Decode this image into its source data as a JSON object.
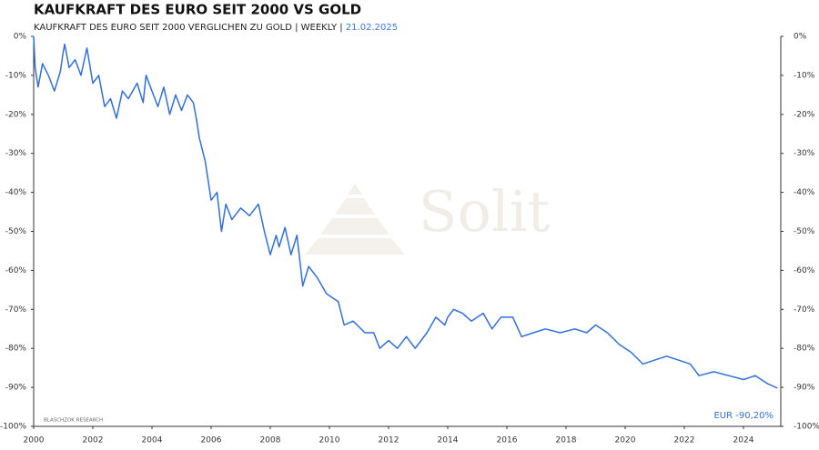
{
  "chart_data": {
    "type": "line",
    "title": "KAUFKRAFT DES EURO SEIT 2000 VS GOLD",
    "subtitle": "KAUFKRAFT DES EURO SEIT 2000 VERGLICHEN ZU GOLD | WEEKLY |",
    "date": "21.02.2025",
    "watermark": "Solit",
    "source": "BLASCHZOK    RESEARCH",
    "annotation": "EUR -90,20%",
    "xlim": [
      2000,
      2025.2
    ],
    "xticks": [
      2000,
      2002,
      2004,
      2006,
      2008,
      2010,
      2012,
      2014,
      2016,
      2018,
      2020,
      2022,
      2024
    ],
    "ylim": [
      -100,
      0
    ],
    "yticks": [
      {
        "value": 0,
        "label": "0%"
      },
      {
        "value": -10,
        "label": "-10%"
      },
      {
        "value": -20,
        "label": "-20%"
      },
      {
        "value": -30,
        "label": "-30%"
      },
      {
        "value": -40,
        "label": "-40%"
      },
      {
        "value": -50,
        "label": "-50%"
      },
      {
        "value": -60,
        "label": "-60%"
      },
      {
        "value": -70,
        "label": "-70%"
      },
      {
        "value": -80,
        "label": "-80%"
      },
      {
        "value": -90,
        "label": "-90%"
      },
      {
        "value": -100,
        "label": "-100%"
      }
    ],
    "x": [
      2000,
      2000.05,
      2000.15,
      2000.3,
      2000.5,
      2000.7,
      2000.9,
      2001.0,
      2001.05,
      2001.2,
      2001.4,
      2001.6,
      2001.8,
      2002.0,
      2002.2,
      2002.4,
      2002.6,
      2002.8,
      2003.0,
      2003.2,
      2003.5,
      2003.7,
      2003.8,
      2004.0,
      2004.2,
      2004.4,
      2004.6,
      2004.8,
      2005.0,
      2005.2,
      2005.4,
      2005.5,
      2005.6,
      2005.8,
      2006.0,
      2006.2,
      2006.35,
      2006.5,
      2006.7,
      2007.0,
      2007.3,
      2007.6,
      2007.8,
      2008.0,
      2008.2,
      2008.3,
      2008.5,
      2008.7,
      2008.9,
      2009.1,
      2009.3,
      2009.6,
      2009.9,
      2010.3,
      2010.5,
      2010.8,
      2011.2,
      2011.5,
      2011.7,
      2012.0,
      2012.3,
      2012.6,
      2012.9,
      2013.3,
      2013.6,
      2013.9,
      2014.0,
      2014.2,
      2014.5,
      2014.8,
      2015.2,
      2015.5,
      2015.8,
      2016.2,
      2016.5,
      2016.9,
      2017.3,
      2017.8,
      2018.3,
      2018.7,
      2019.0,
      2019.4,
      2019.8,
      2020.2,
      2020.6,
      2021.0,
      2021.4,
      2021.8,
      2022.2,
      2022.5,
      2023.0,
      2023.5,
      2024.0,
      2024.4,
      2024.8,
      2025.15
    ],
    "series": [
      {
        "name": "EUR",
        "color": "#2f6fdf",
        "values": [
          0,
          -8,
          -13,
          -7,
          -10,
          -14,
          -9,
          -4,
          -2,
          -8,
          -6,
          -10,
          -3,
          -12,
          -10,
          -18,
          -16,
          -21,
          -14,
          -16,
          -12,
          -17,
          -10,
          -14,
          -18,
          -13,
          -20,
          -15,
          -19,
          -15,
          -17,
          -21,
          -26,
          -32,
          -42,
          -40,
          -50,
          -43,
          -47,
          -44,
          -46,
          -43,
          -50,
          -56,
          -51,
          -54,
          -49,
          -56,
          -51,
          -64,
          -59,
          -62,
          -66,
          -68,
          -74,
          -73,
          -76,
          -76,
          -80,
          -78,
          -80,
          -77,
          -80,
          -76,
          -72,
          -74,
          -72,
          -70,
          -71,
          -73,
          -71,
          -75,
          -72,
          -72,
          -77,
          -76,
          -75,
          -76,
          -75,
          -76,
          -74,
          -76,
          -79,
          -81,
          -84,
          -83,
          -82,
          -83,
          -84,
          -87,
          -86,
          -87,
          -88,
          -87,
          -89,
          -90.2
        ]
      }
    ]
  }
}
